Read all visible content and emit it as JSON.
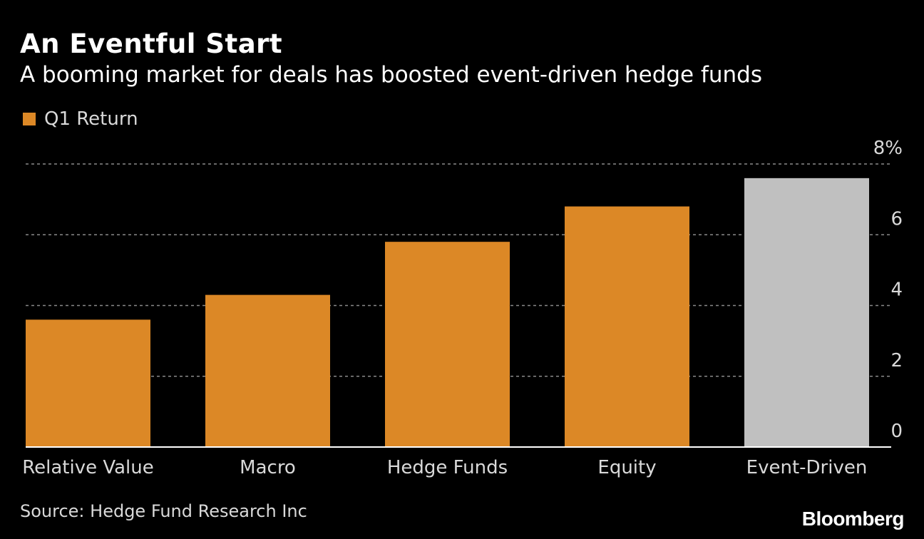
{
  "header": {
    "title": "An Eventful Start",
    "subtitle": "A booming market for deals has boosted event-driven hedge funds"
  },
  "legend": {
    "label": "Q1 Return",
    "color": "#dc8826"
  },
  "footer": {
    "source": "Source: Hedge Fund Research Inc",
    "brand": "Bloomberg"
  },
  "colors": {
    "background": "#000000",
    "bar": "#dc8826",
    "highlight_bar": "#c0c0c0",
    "gridline": "#8a8a8a",
    "axis_text": "#d9d9d9"
  },
  "chart_data": {
    "type": "bar",
    "categories": [
      "Relative Value",
      "Macro",
      "Hedge Funds",
      "Equity",
      "Event-Driven"
    ],
    "series": [
      {
        "name": "Q1 Return",
        "values": [
          3.6,
          4.3,
          5.8,
          6.8,
          7.6
        ]
      }
    ],
    "highlight_index": 4,
    "ylim": [
      0,
      8
    ],
    "yticks": [
      0,
      2,
      4,
      6,
      8
    ],
    "ytick_labels": [
      "0",
      "2",
      "4",
      "6",
      "8%"
    ],
    "y_axis_side": "right",
    "grid": true,
    "grid_style": "dashed",
    "legend_position": "top-left"
  }
}
